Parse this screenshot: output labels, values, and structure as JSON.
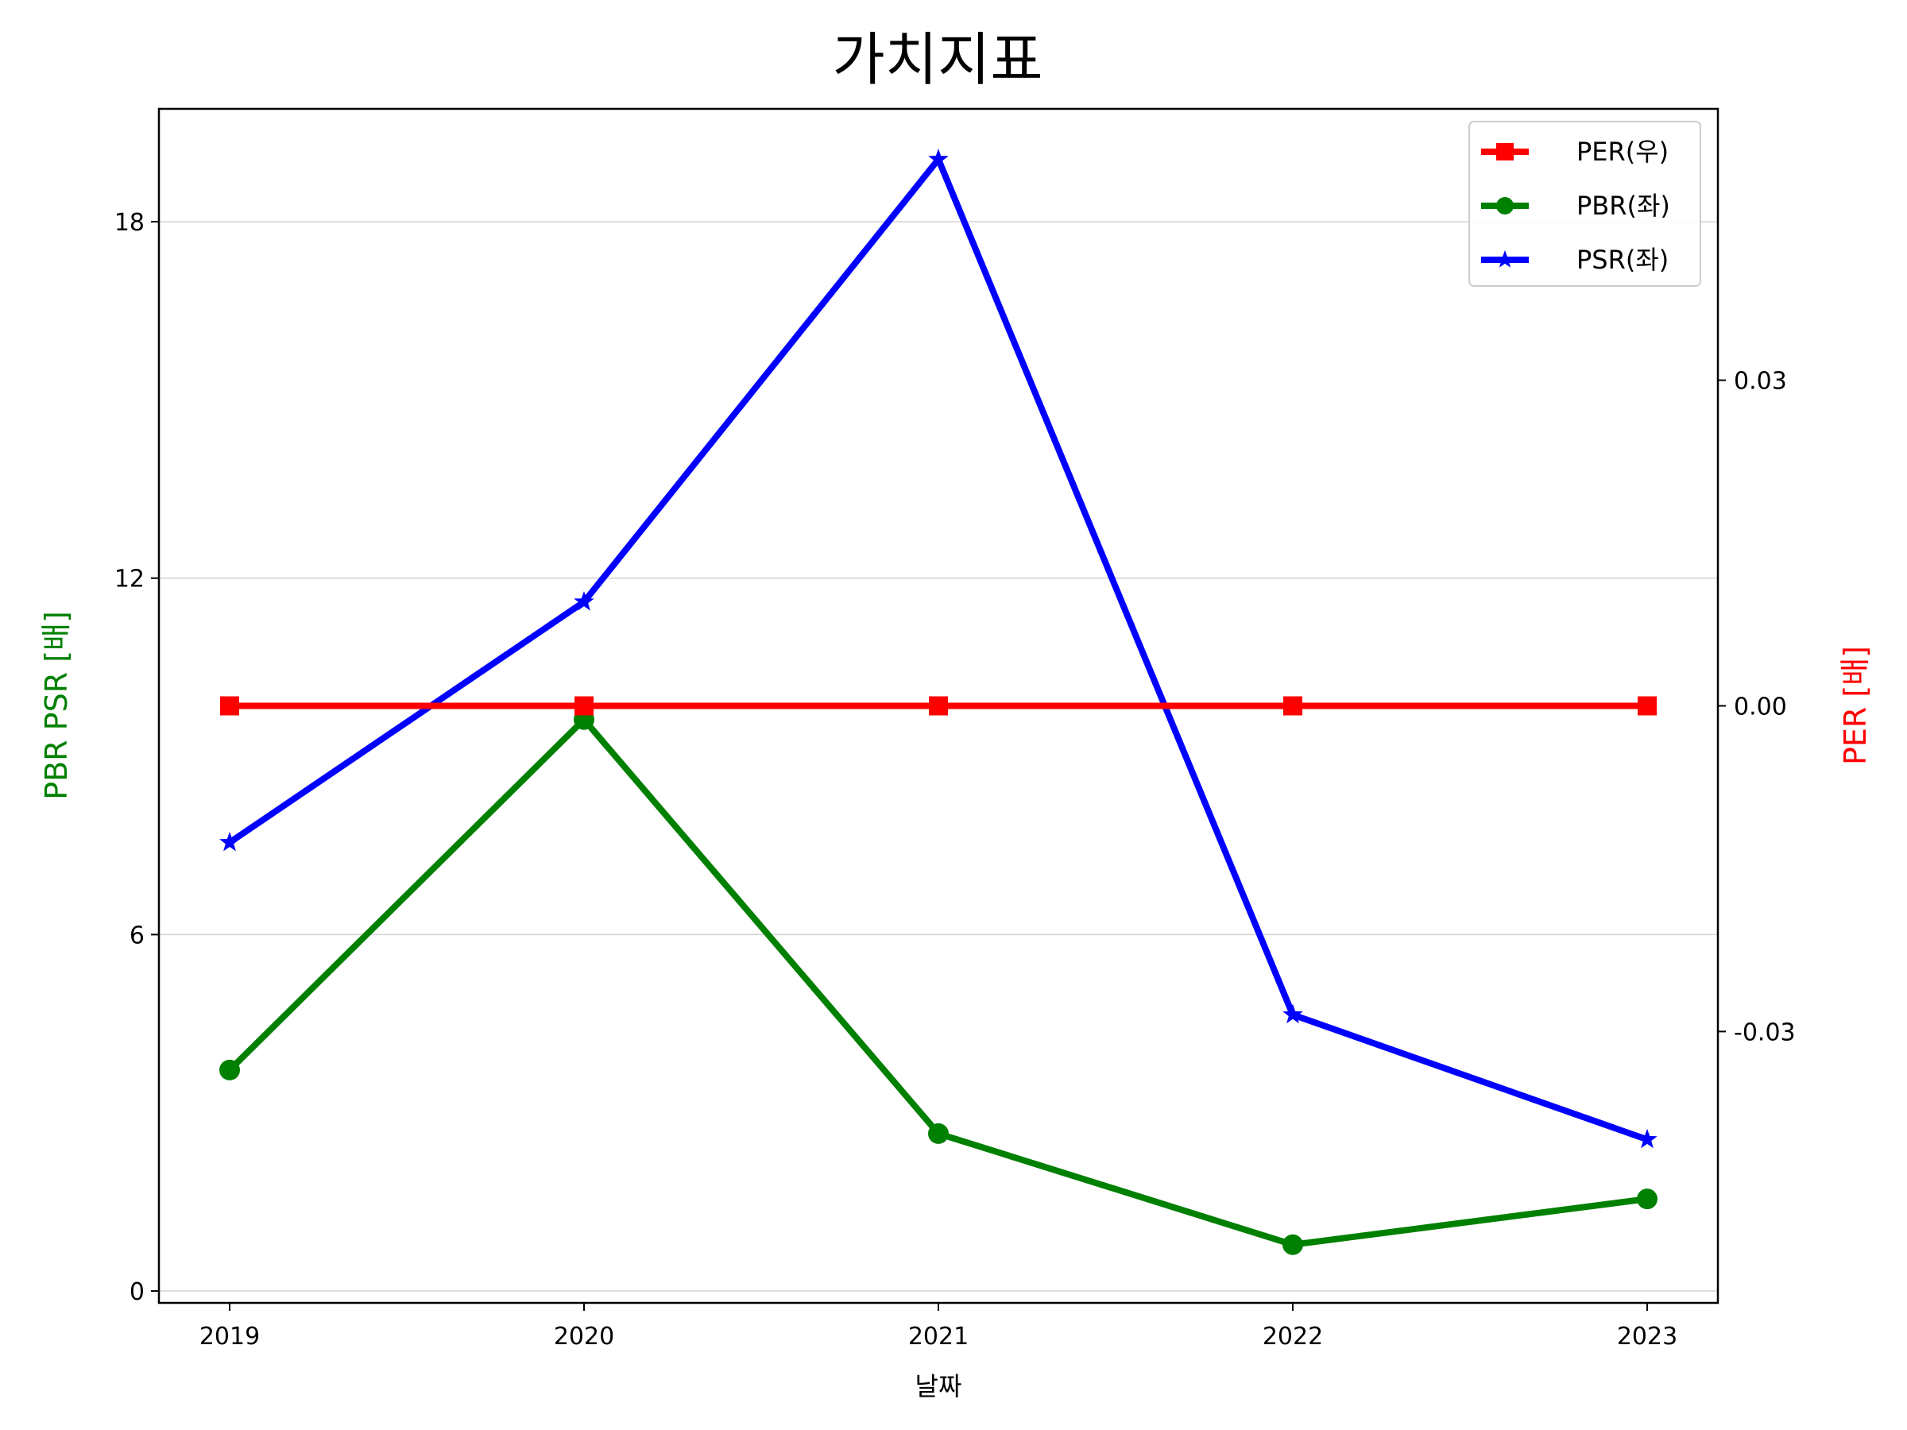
{
  "chart_data": {
    "type": "line",
    "title": "가치지표",
    "xlabel": "날짜",
    "ylabel_left": "PBR PSR [배]",
    "ylabel_right": "PER [배]",
    "categories": [
      "2019",
      "2020",
      "2021",
      "2022",
      "2023"
    ],
    "y_left_ticks": [
      0,
      6,
      12,
      18
    ],
    "y_left_tick_labels": [
      "0",
      "6",
      "12",
      "18"
    ],
    "y_left_lim": [
      -0.2,
      19.9
    ],
    "y_right_ticks": [
      -0.03,
      0.0,
      0.03
    ],
    "y_right_tick_labels": [
      "-0.03",
      "0.00",
      "0.03"
    ],
    "y_right_lim": [
      -0.055,
      0.055
    ],
    "grid": "horizontal",
    "legend_position": "top-right",
    "series": [
      {
        "name": "PER(우)",
        "axis": "right",
        "color": "#ff0000",
        "marker": "square",
        "values": [
          0,
          0,
          0,
          0,
          0
        ]
      },
      {
        "name": "PBR(좌)",
        "axis": "left",
        "color": "#008000",
        "marker": "circle",
        "values": [
          3.72,
          9.62,
          2.65,
          0.78,
          1.55
        ]
      },
      {
        "name": "PSR(좌)",
        "axis": "left",
        "color": "#0000ff",
        "marker": "star",
        "values": [
          7.55,
          11.6,
          19.05,
          4.65,
          2.55
        ]
      }
    ]
  }
}
